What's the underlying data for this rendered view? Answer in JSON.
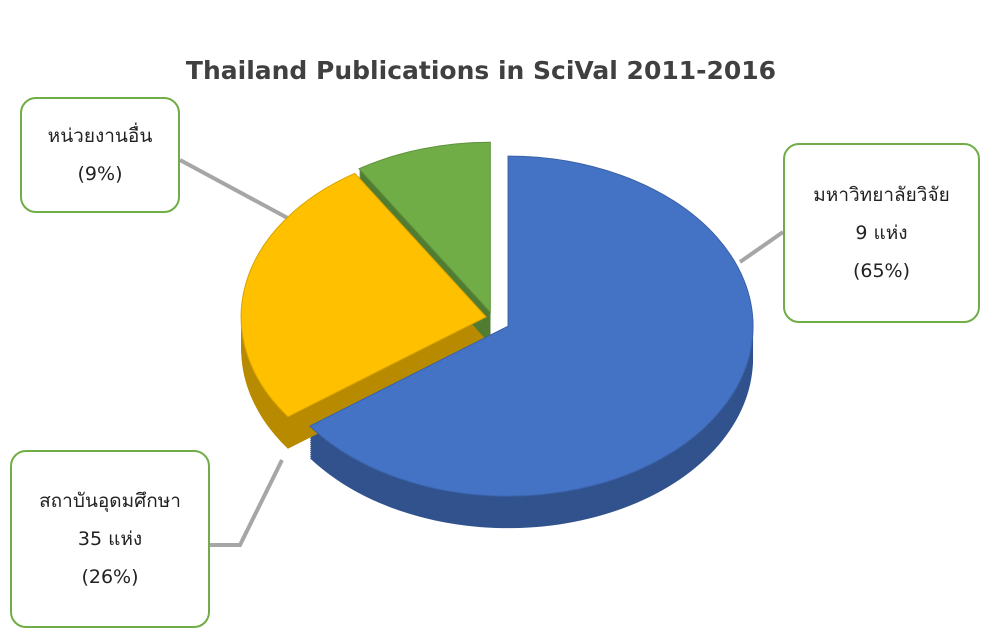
{
  "chart_data": {
    "type": "pie",
    "title": "Thailand Publications in SciVal 2011-2016",
    "categories": [
      "มหาวิทยาลัยวิจัย\n9 แห่ง",
      "สถาบันอุดมศึกษา\n35 แห่ง",
      "หน่วยงานอื่น"
    ],
    "values": [
      65,
      26,
      9
    ],
    "value_labels": [
      "(65%)",
      "(26%)",
      "(9%)"
    ],
    "colors": [
      "#4472c4",
      "#ffc000",
      "#70ad47"
    ]
  }
}
